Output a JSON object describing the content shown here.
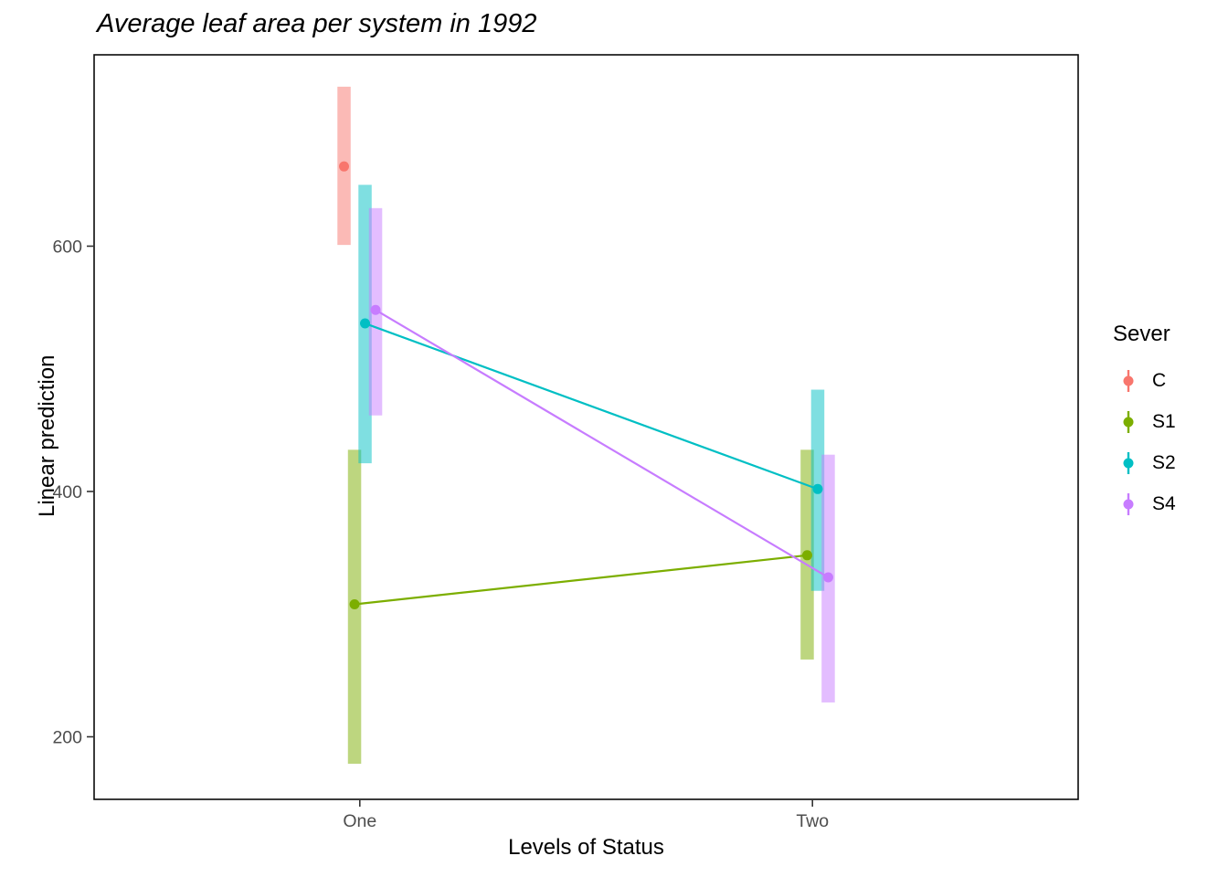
{
  "chart_data": {
    "type": "pointrange",
    "title": "Average leaf area per system in 1992",
    "xlabel": "Levels of Status",
    "ylabel": "Linear prediction",
    "legend_title": "Sever",
    "legend_position": "right",
    "grid": false,
    "categories": [
      "One",
      "Two"
    ],
    "y_ticks": [
      200,
      400,
      600
    ],
    "ylim": [
      149,
      756
    ],
    "series": [
      {
        "name": "C",
        "color": "#F8766D",
        "points": [
          {
            "x": "One",
            "y": 665,
            "ymin": 601,
            "ymax": 730
          }
        ]
      },
      {
        "name": "S1",
        "color": "#7CAE00",
        "points": [
          {
            "x": "One",
            "y": 308,
            "ymin": 178,
            "ymax": 434
          },
          {
            "x": "Two",
            "y": 348,
            "ymin": 263,
            "ymax": 434
          }
        ]
      },
      {
        "name": "S2",
        "color": "#00BFC4",
        "points": [
          {
            "x": "One",
            "y": 537,
            "ymin": 423,
            "ymax": 650
          },
          {
            "x": "Two",
            "y": 402,
            "ymin": 319,
            "ymax": 483
          }
        ]
      },
      {
        "name": "S4",
        "color": "#C77CFF",
        "points": [
          {
            "x": "One",
            "y": 548,
            "ymin": 462,
            "ymax": 631
          },
          {
            "x": "Two",
            "y": 330,
            "ymin": 228,
            "ymax": 430
          }
        ]
      }
    ]
  }
}
